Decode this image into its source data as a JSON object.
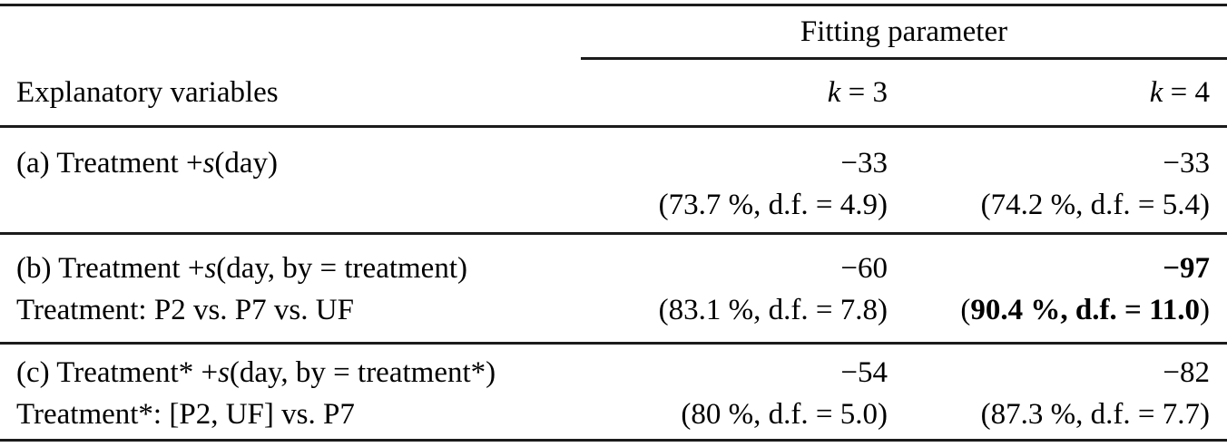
{
  "colors": {
    "background": "#ffffff",
    "text": "#000000",
    "rule": "#1b1b1b"
  },
  "table": {
    "group_header": "Fitting parameter",
    "stub_header": "Explanatory variables",
    "columns": [
      {
        "var": "k",
        "rest": " = 3"
      },
      {
        "var": "k",
        "rest": " = 4"
      }
    ],
    "rows": [
      {
        "label_prefix": "(a) Treatment +",
        "label_var": "s",
        "label_suffix": "(day)",
        "label_line2": "",
        "k3_value": "−33",
        "k3_detail": "(73.7 %, d.f. = 4.9)",
        "k4_value": "−33",
        "k4_detail": "(74.2 %, d.f. = 5.4)"
      },
      {
        "label_prefix": "(b) Treatment +",
        "label_var": "s",
        "label_suffix": "(day, by = treatment)",
        "label_line2": "Treatment: P2 vs. P7 vs. UF",
        "k3_value": "−60",
        "k3_detail": "(83.1 %, d.f. = 7.8)",
        "k4_value": "−97",
        "k4_detail_open": "(",
        "k4_detail_bold": "90.4 %, d.f. = 11.0",
        "k4_detail_close": ")"
      },
      {
        "label_prefix": "(c) Treatment* +",
        "label_var": "s",
        "label_suffix": "(day, by = treatment*)",
        "label_line2": "Treatment*: [P2, UF] vs. P7",
        "k3_value": "−54",
        "k3_detail": "(80 %, d.f. = 5.0)",
        "k4_value": "−82",
        "k4_detail": "(87.3 %, d.f. = 7.7)"
      }
    ]
  }
}
